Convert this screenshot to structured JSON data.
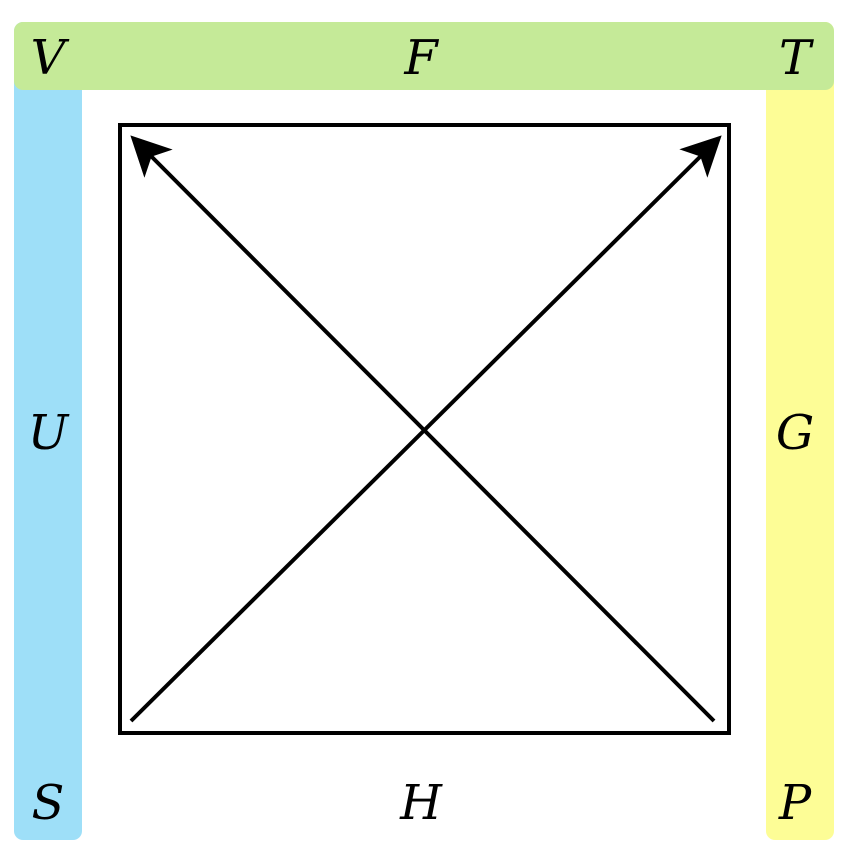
{
  "colors": {
    "top_band": "#c5ea98",
    "left_band": "#9edff8",
    "right_band": "#fdfd96",
    "stroke": "#000000",
    "background": "#ffffff"
  },
  "labels": {
    "top_left": "V",
    "top_center": "F",
    "top_right": "T",
    "left_middle": "U",
    "right_middle": "G",
    "bottom_left": "S",
    "bottom_center": "H",
    "bottom_right": "P"
  },
  "diagram": {
    "shape": "square",
    "arrows": [
      {
        "from": "bottom-left",
        "to": "top-right"
      },
      {
        "from": "bottom-right",
        "to": "top-left"
      }
    ]
  }
}
